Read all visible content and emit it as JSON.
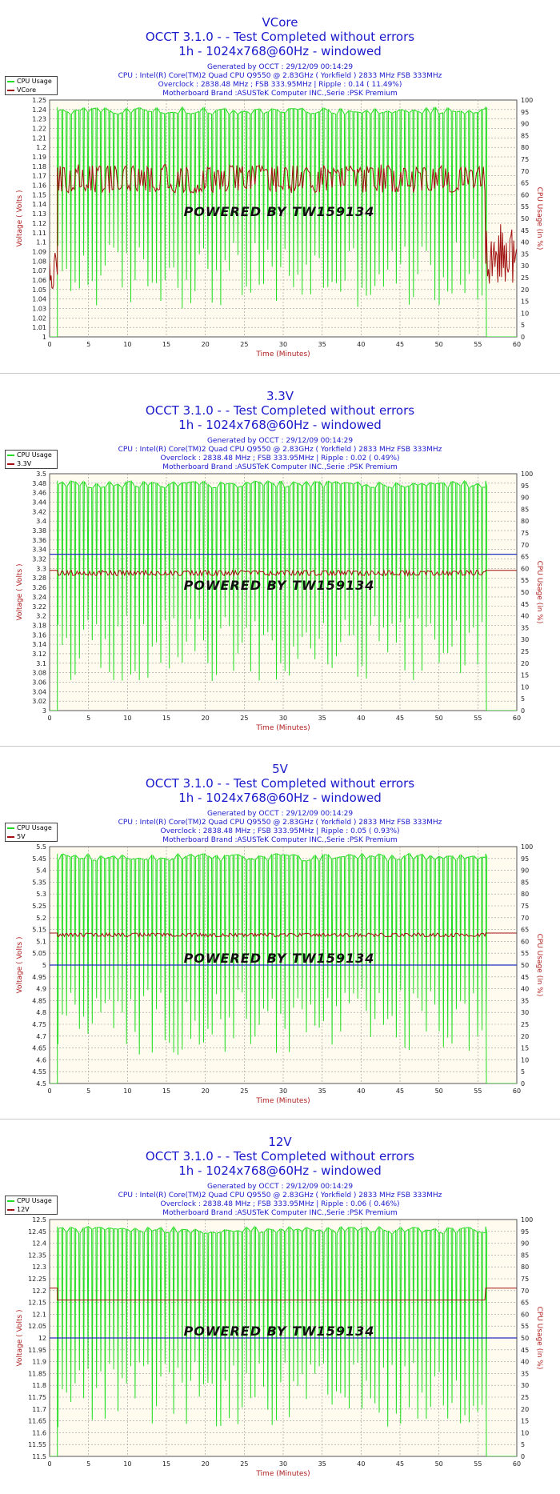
{
  "chart_data": [
    {
      "type": "line",
      "title": "VCore",
      "subtitle1": "OCCT 3.1.0 -  - Test Completed without errors",
      "subtitle2": "1h - 1024x768@60Hz - windowed",
      "info": [
        "Generated by OCCT : 29/12/09 00:14:29",
        "CPU : Intel(R) Core(TM)2 Quad CPU Q9550 @ 2.83GHz ( Yorkfield ) 2833 MHz FSB 333MHz",
        "Overclock : 2838.48 MHz ; FSB 333.95MHz | Ripple : 0.14 ( 11.49%)",
        "Motherboard Brand :ASUSTeK Computer INC.,Serie :PSK Premium"
      ],
      "xlabel": "Time (Minutes)",
      "ylabel": "Voltage ( Volts )",
      "y2label": "CPU Usage (in %)",
      "watermark": "POWERED BY TW159134",
      "xlim": [
        0,
        60
      ],
      "xticks": [
        0,
        5,
        10,
        15,
        20,
        25,
        30,
        35,
        40,
        45,
        50,
        55,
        60
      ],
      "ylim": [
        1,
        1.25
      ],
      "yticks": [
        "1",
        "1.01",
        "1.02",
        "1.03",
        "1.04",
        "1.05",
        "1.06",
        "1.07",
        "1.08",
        "1.09",
        "1.1",
        "1.11",
        "1.12",
        "1.13",
        "1.14",
        "1.15",
        "1.16",
        "1.17",
        "1.18",
        "1.19",
        "1.2",
        "1.21",
        "1.22",
        "1.23",
        "1.24",
        "1.25"
      ],
      "y2lim": [
        0,
        100
      ],
      "y2ticks": [
        0,
        5,
        10,
        15,
        20,
        25,
        30,
        35,
        40,
        45,
        50,
        55,
        60,
        65,
        70,
        75,
        80,
        85,
        90,
        95,
        100
      ],
      "legend": [
        "CPU Usage",
        "VCore"
      ],
      "ref_line": null,
      "voltage": {
        "pre_low": 1.05,
        "pre_high": 1.09,
        "low": 1.152,
        "high": 1.182,
        "post_low": 1.056,
        "post_high": 1.12,
        "end_x": 56
      },
      "cpu": {
        "start": 1,
        "end": 56,
        "high": 97,
        "low_min": 12,
        "low_max": 40
      }
    },
    {
      "type": "line",
      "title": "3.3V",
      "subtitle1": "OCCT 3.1.0 -  - Test Completed without errors",
      "subtitle2": "1h - 1024x768@60Hz - windowed",
      "info": [
        "Generated by OCCT : 29/12/09 00:14:29",
        "CPU : Intel(R) Core(TM)2 Quad CPU Q9550 @ 2.83GHz ( Yorkfield ) 2833 MHz FSB 333MHz",
        "Overclock : 2838.48 MHz ; FSB 333.95MHz | Ripple : 0.02 ( 0.49%)",
        "Motherboard Brand :ASUSTeK Computer INC.,Serie :PSK Premium"
      ],
      "xlabel": "Time (Minutes)",
      "ylabel": "Voltage ( Volts )",
      "y2label": "CPU Usage (in %)",
      "watermark": "POWERED BY TW159134",
      "xlim": [
        0,
        60
      ],
      "xticks": [
        0,
        5,
        10,
        15,
        20,
        25,
        30,
        35,
        40,
        45,
        50,
        55,
        60
      ],
      "ylim": [
        3,
        3.5
      ],
      "yticks": [
        "3",
        "3.02",
        "3.04",
        "3.06",
        "3.08",
        "3.1",
        "3.12",
        "3.14",
        "3.16",
        "3.18",
        "3.2",
        "3.22",
        "3.24",
        "3.26",
        "3.28",
        "3.3",
        "3.32",
        "3.34",
        "3.36",
        "3.38",
        "3.4",
        "3.42",
        "3.44",
        "3.46",
        "3.48",
        "3.5"
      ],
      "y2lim": [
        0,
        100
      ],
      "y2ticks": [
        0,
        5,
        10,
        15,
        20,
        25,
        30,
        35,
        40,
        45,
        50,
        55,
        60,
        65,
        70,
        75,
        80,
        85,
        90,
        95,
        100
      ],
      "legend": [
        "CPU Usage",
        "3.3V"
      ],
      "ref_line": 3.33,
      "voltage": {
        "pre_low": 3.296,
        "pre_high": 3.296,
        "low": 3.285,
        "high": 3.296,
        "post_low": 3.296,
        "post_high": 3.296,
        "end_x": 56
      },
      "cpu": {
        "start": 1,
        "end": 56,
        "high": 97,
        "low_min": 12,
        "low_max": 40
      }
    },
    {
      "type": "line",
      "title": "5V",
      "subtitle1": "OCCT 3.1.0 -  - Test Completed without errors",
      "subtitle2": "1h - 1024x768@60Hz - windowed",
      "info": [
        "Generated by OCCT : 29/12/09 00:14:29",
        "CPU : Intel(R) Core(TM)2 Quad CPU Q9550 @ 2.83GHz ( Yorkfield ) 2833 MHz FSB 333MHz",
        "Overclock : 2838.48 MHz ; FSB 333.95MHz | Ripple : 0.05 ( 0.93%)",
        "Motherboard Brand :ASUSTeK Computer INC.,Serie :PSK Premium"
      ],
      "xlabel": "Time (Minutes)",
      "ylabel": "Voltage ( Volts )",
      "y2label": "CPU Usage (in %)",
      "watermark": "POWERED BY TW159134",
      "xlim": [
        0,
        60
      ],
      "xticks": [
        0,
        5,
        10,
        15,
        20,
        25,
        30,
        35,
        40,
        45,
        50,
        55,
        60
      ],
      "ylim": [
        4.5,
        5.5
      ],
      "yticks": [
        "4.5",
        "4.55",
        "4.6",
        "4.65",
        "4.7",
        "4.75",
        "4.8",
        "4.85",
        "4.9",
        "4.95",
        "5",
        "5.05",
        "5.1",
        "5.15",
        "5.2",
        "5.25",
        "5.3",
        "5.35",
        "5.4",
        "5.45",
        "5.5"
      ],
      "y2lim": [
        0,
        100
      ],
      "y2ticks": [
        0,
        5,
        10,
        15,
        20,
        25,
        30,
        35,
        40,
        45,
        50,
        55,
        60,
        65,
        70,
        75,
        80,
        85,
        90,
        95,
        100
      ],
      "legend": [
        "CPU Usage",
        "5V"
      ],
      "ref_line": 5.0,
      "voltage": {
        "pre_low": 5.135,
        "pre_high": 5.135,
        "low": 5.12,
        "high": 5.135,
        "post_low": 5.135,
        "post_high": 5.135,
        "end_x": 56
      },
      "cpu": {
        "start": 1,
        "end": 56,
        "high": 97,
        "low_min": 12,
        "low_max": 40
      }
    },
    {
      "type": "line",
      "title": "12V",
      "subtitle1": "OCCT 3.1.0 -  - Test Completed without errors",
      "subtitle2": "1h - 1024x768@60Hz - windowed",
      "info": [
        "Generated by OCCT : 29/12/09 00:14:29",
        "CPU : Intel(R) Core(TM)2 Quad CPU Q9550 @ 2.83GHz ( Yorkfield ) 2833 MHz FSB 333MHz",
        "Overclock : 2838.48 MHz ; FSB 333.95MHz | Ripple : 0.06 ( 0.46%)",
        "Motherboard Brand :ASUSTeK Computer INC.,Serie :PSK Premium"
      ],
      "xlabel": "Time (Minutes)",
      "ylabel": "Voltage ( Volts )",
      "y2label": "CPU Usage (in %)",
      "watermark": "POWERED BY TW159134",
      "xlim": [
        0,
        60
      ],
      "xticks": [
        0,
        5,
        10,
        15,
        20,
        25,
        30,
        35,
        40,
        45,
        50,
        55,
        60
      ],
      "ylim": [
        11.5,
        12.5
      ],
      "yticks": [
        "11.5",
        "11.55",
        "11.6",
        "11.65",
        "11.7",
        "11.75",
        "11.8",
        "11.85",
        "11.9",
        "11.95",
        "12",
        "12.05",
        "12.1",
        "12.15",
        "12.2",
        "12.25",
        "12.3",
        "12.35",
        "12.4",
        "12.45",
        "12.5"
      ],
      "y2lim": [
        0,
        100
      ],
      "y2ticks": [
        0,
        5,
        10,
        15,
        20,
        25,
        30,
        35,
        40,
        45,
        50,
        55,
        60,
        65,
        70,
        75,
        80,
        85,
        90,
        95,
        100
      ],
      "legend": [
        "CPU Usage",
        "12V"
      ],
      "ref_line": 12.0,
      "voltage": {
        "pre_low": 12.21,
        "pre_high": 12.21,
        "low": 12.16,
        "high": 12.16,
        "post_low": 12.21,
        "post_high": 12.21,
        "end_x": 56
      },
      "cpu": {
        "start": 1,
        "end": 56,
        "high": 97,
        "low_min": 12,
        "low_max": 40
      }
    }
  ],
  "colors": {
    "cpu": "#22dd22",
    "voltage": "#a01010",
    "voltage_dark": "#222222",
    "ref": "#2030c0",
    "plot_bg": "#fffbee",
    "grid": "#9a9a9a",
    "title": "#1a1acc",
    "axis_label": "#b02020"
  }
}
